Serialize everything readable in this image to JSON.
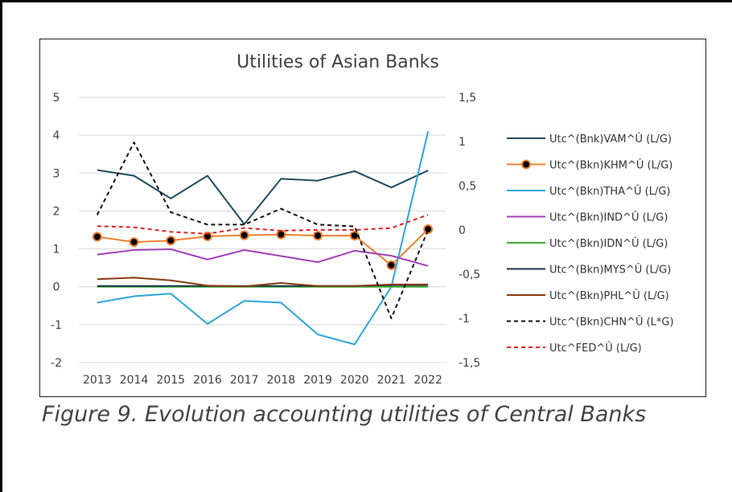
{
  "caption": "Figure 9. Evolution accounting utilities of Central Banks",
  "chart_data": {
    "type": "line",
    "title": "Utilities of Asian Banks",
    "categories": [
      "2013",
      "2014",
      "2015",
      "2016",
      "2017",
      "2018",
      "2019",
      "2020",
      "2021",
      "2022"
    ],
    "y_left": {
      "min": -2,
      "max": 5,
      "ticks": [
        "-2",
        "-1",
        "0",
        "1",
        "2",
        "3",
        "4",
        "5"
      ]
    },
    "y_right": {
      "min": -1.5,
      "max": 1.5,
      "ticks": [
        "-1,5",
        "-1",
        "-0,5",
        "0",
        "0,5",
        "1",
        "1,5"
      ]
    },
    "grid": "horizontal",
    "legend_position": "right",
    "series": [
      {
        "name": "Utc^(Bnk)VAM^Û (L/G)",
        "axis": "left",
        "color": "#1f4e63",
        "style": "solid",
        "marker": false,
        "values": [
          3.08,
          2.93,
          2.33,
          2.93,
          1.65,
          2.85,
          2.8,
          3.05,
          2.62,
          3.07
        ]
      },
      {
        "name": "Utc^(Bkn)KHM^Û (L/G)",
        "axis": "left",
        "color": "#f08030",
        "style": "solid",
        "marker": true,
        "values": [
          1.32,
          1.18,
          1.22,
          1.33,
          1.36,
          1.38,
          1.35,
          1.35,
          0.57,
          1.52
        ]
      },
      {
        "name": "Utc^(Bkn)THA^Û (L/G)",
        "axis": "left",
        "color": "#2ea6d8",
        "style": "solid",
        "marker": false,
        "values": [
          -0.42,
          -0.25,
          -0.18,
          -0.98,
          -0.37,
          -0.42,
          -1.26,
          -1.52,
          0.0,
          4.1
        ]
      },
      {
        "name": "Utc^(Bkn)IND^Û (L/G)",
        "axis": "left",
        "color": "#a040b8",
        "style": "solid",
        "marker": false,
        "values": [
          0.85,
          0.97,
          0.99,
          0.72,
          0.97,
          0.81,
          0.65,
          0.95,
          0.82,
          0.55
        ]
      },
      {
        "name": "Utc^(Bkn)IDN^Û (L/G)",
        "axis": "left",
        "color": "#3cb030",
        "style": "solid",
        "marker": false,
        "values": [
          0.0,
          0.0,
          0.0,
          0.0,
          0.0,
          0.0,
          0.0,
          0.0,
          0.0,
          0.0
        ]
      },
      {
        "name": "Utc^(Bkn)MYS^Û (L/G)",
        "axis": "left",
        "color": "#1c3550",
        "style": "solid",
        "marker": false,
        "values": [
          0.02,
          0.02,
          0.02,
          0.02,
          0.02,
          0.02,
          0.02,
          0.02,
          0.04,
          0.04
        ]
      },
      {
        "name": "Utc^(Bkn)PHL^Û (L/G)",
        "axis": "left",
        "color": "#8a3a10",
        "style": "solid",
        "marker": false,
        "values": [
          0.2,
          0.24,
          0.17,
          0.03,
          0.01,
          0.1,
          0.02,
          0.02,
          0.06,
          0.06
        ]
      },
      {
        "name": "Utc^(Bkn)CHN^Û (L*G)",
        "axis": "right",
        "color": "#111111",
        "style": "dashed",
        "marker": false,
        "values": [
          0.17,
          0.99,
          0.2,
          0.06,
          0.06,
          0.24,
          0.06,
          0.04,
          -1.0,
          0.0
        ]
      },
      {
        "name": "Utc^FED^Û (L/G)",
        "axis": "left",
        "color": "#e02020",
        "style": "dashed",
        "marker": false,
        "values": [
          1.6,
          1.57,
          1.45,
          1.4,
          1.55,
          1.48,
          1.5,
          1.5,
          1.55,
          1.9
        ]
      }
    ]
  }
}
